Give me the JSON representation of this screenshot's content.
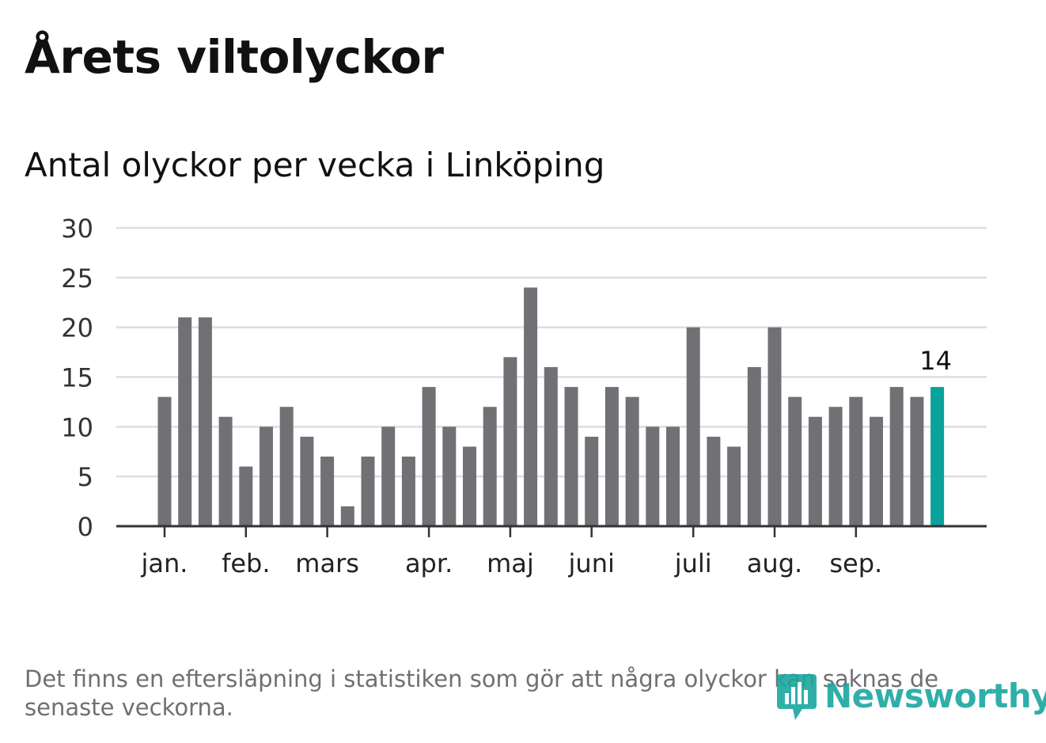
{
  "title": "Årets viltolyckor",
  "subtitle": "Antal olyckor per vecka i Linköping",
  "footnote": "Det finns en eftersläpning i statistiken som gör att några olyckor kan saknas de senaste veckorna.",
  "logo_text": "Newsworthy",
  "colors": {
    "bar": "#717075",
    "highlight": "#0aa39b",
    "grid": "#dddddd",
    "axis": "#333333",
    "logo": "#1aa7a0"
  },
  "chart_data": {
    "type": "bar",
    "title": "Antal olyckor per vecka i Linköping",
    "xlabel": "",
    "ylabel": "",
    "ylim": [
      0,
      30
    ],
    "yticks": [
      0,
      5,
      10,
      15,
      20,
      25,
      30
    ],
    "grid": true,
    "week_values": [
      13,
      21,
      21,
      11,
      6,
      10,
      12,
      9,
      7,
      2,
      7,
      10,
      7,
      14,
      10,
      8,
      12,
      17,
      24,
      16,
      14,
      9,
      14,
      13,
      10,
      10,
      20,
      9,
      8,
      16,
      20,
      13,
      11,
      12,
      13,
      11,
      14,
      13,
      14
    ],
    "highlight_last": true,
    "last_value_label": "14",
    "month_labels": [
      {
        "label": "jan.",
        "week_index": 0
      },
      {
        "label": "feb.",
        "week_index": 4
      },
      {
        "label": "mars",
        "week_index": 8
      },
      {
        "label": "apr.",
        "week_index": 13
      },
      {
        "label": "maj",
        "week_index": 17
      },
      {
        "label": "juni",
        "week_index": 21
      },
      {
        "label": "juli",
        "week_index": 26
      },
      {
        "label": "aug.",
        "week_index": 30
      },
      {
        "label": "sep.",
        "week_index": 34
      }
    ]
  }
}
